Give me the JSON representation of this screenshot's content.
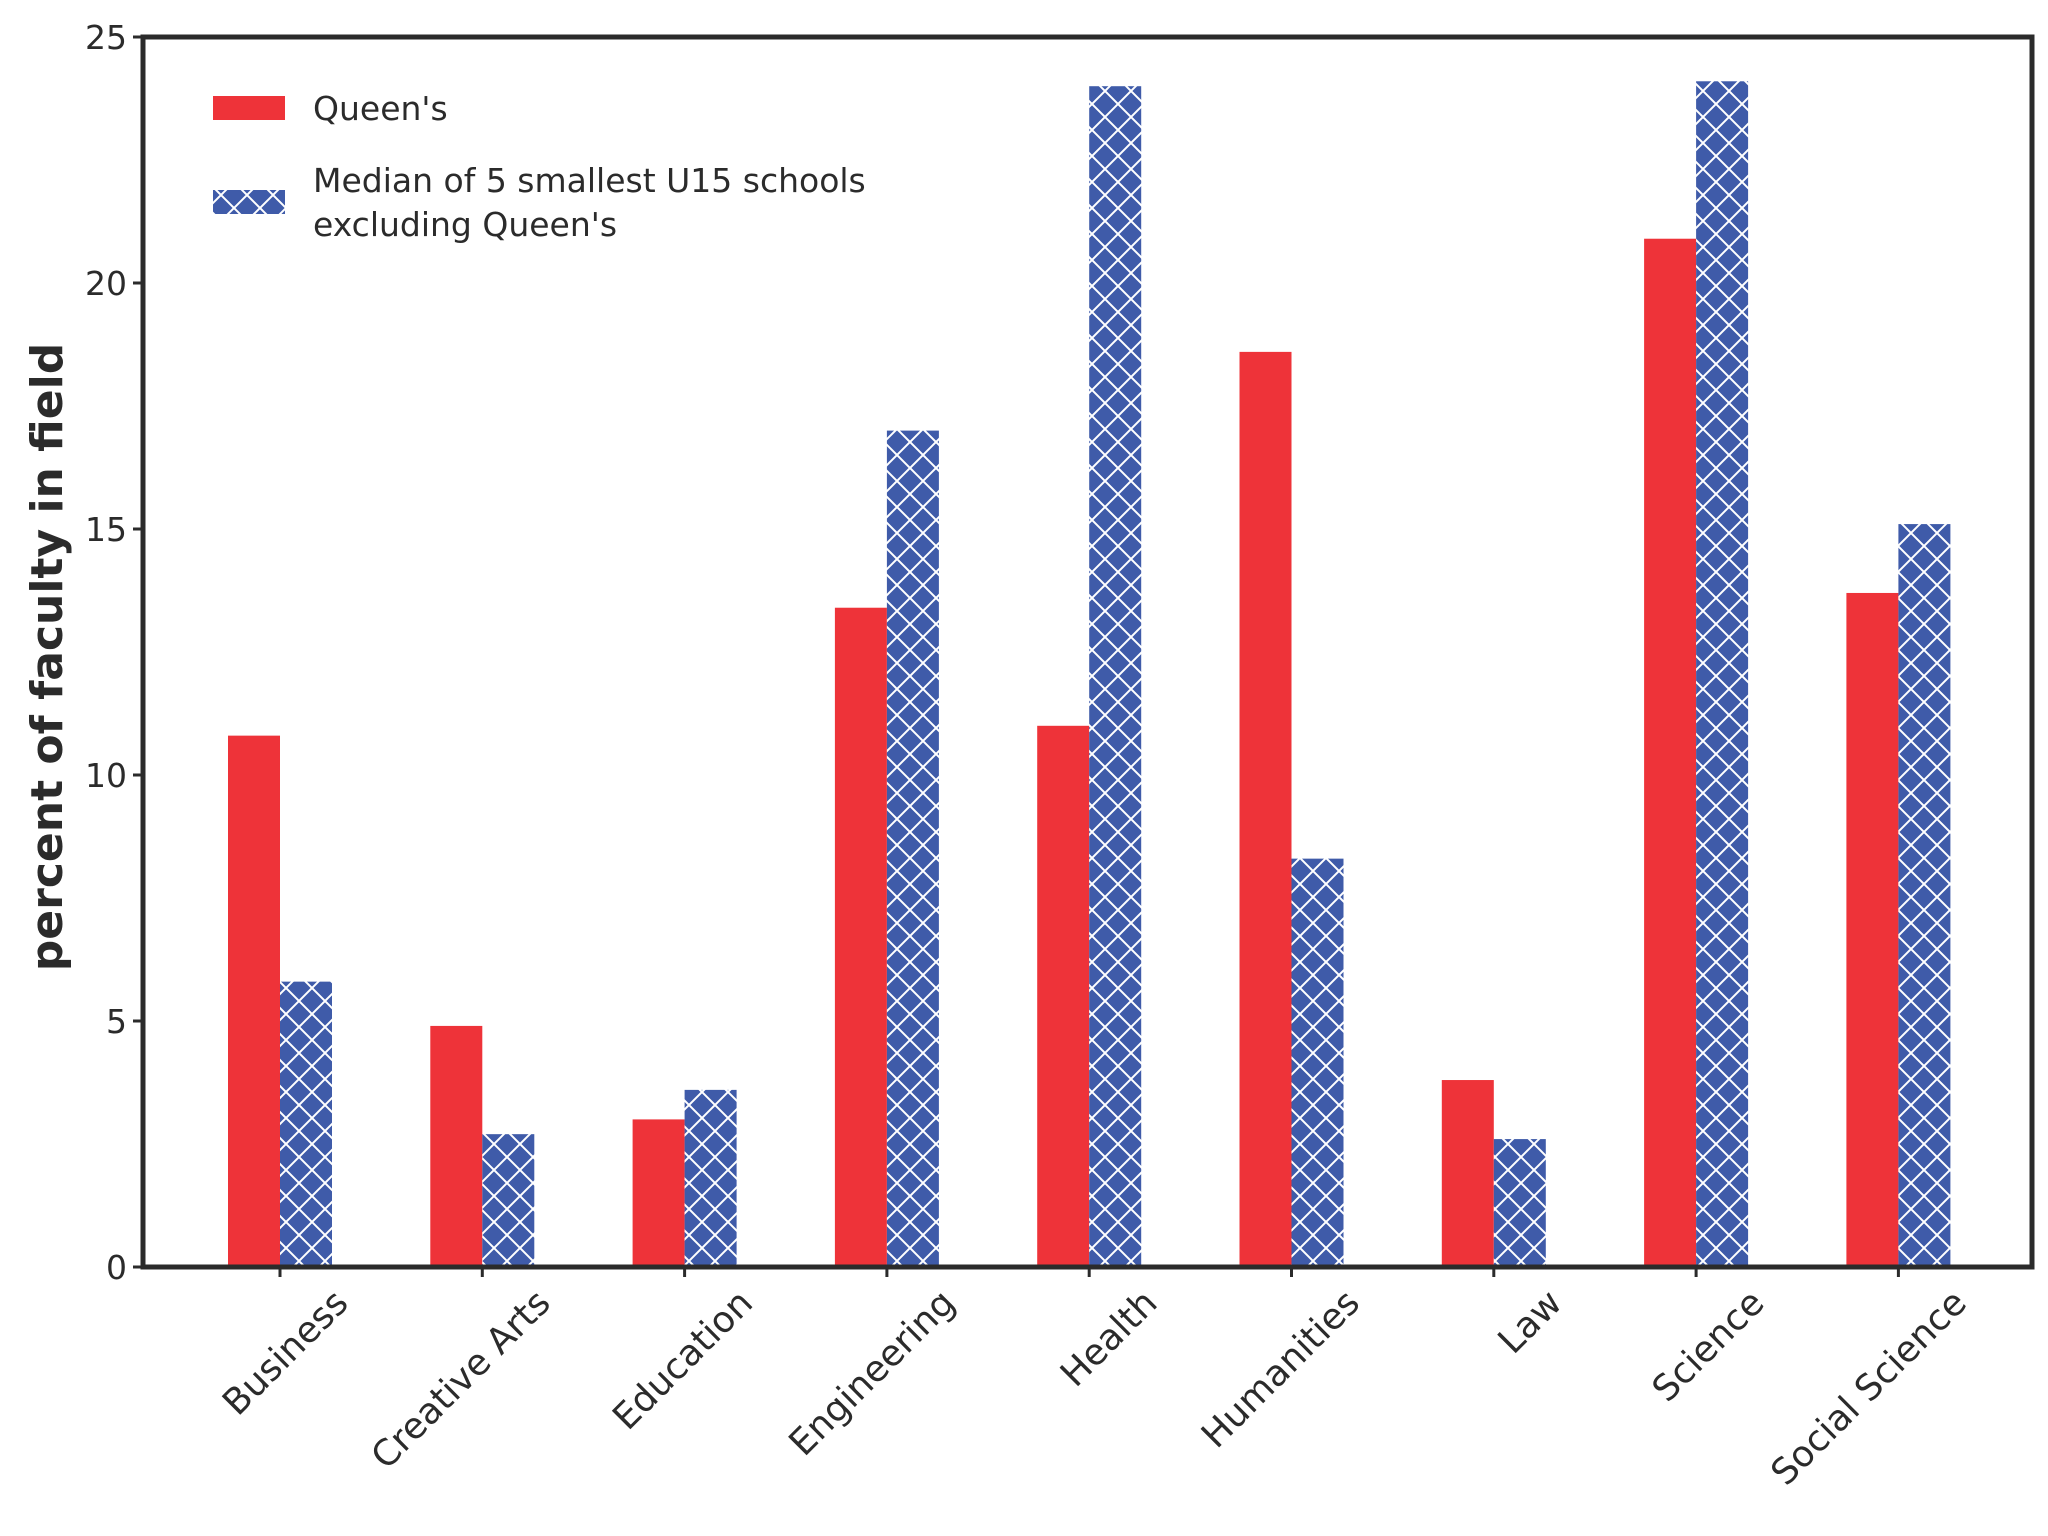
{
  "chart_data": {
    "type": "bar",
    "title": "",
    "xlabel": "",
    "ylabel": "percent of faculty in field",
    "ylim": [
      0,
      25
    ],
    "yticks": [
      0,
      5,
      10,
      15,
      20,
      25
    ],
    "grid": false,
    "legend_position": "top-left",
    "categories": [
      "Business",
      "Creative Arts",
      "Education",
      "Engineering",
      "Health",
      "Humanities",
      "Law",
      "Science",
      "Social Science"
    ],
    "series": [
      {
        "name": "Queen's",
        "color": "#ee3339",
        "pattern": "solid",
        "values": [
          10.8,
          4.9,
          3.0,
          13.4,
          11.0,
          18.6,
          3.8,
          20.9,
          13.7
        ]
      },
      {
        "name": "Median of 5 smallest U15 schools\nexcluding Queen's",
        "color": "#3f5ba9",
        "pattern": "crosshatch",
        "values": [
          5.8,
          2.7,
          3.6,
          17.0,
          24.0,
          8.3,
          2.6,
          24.1,
          15.1
        ]
      }
    ]
  }
}
